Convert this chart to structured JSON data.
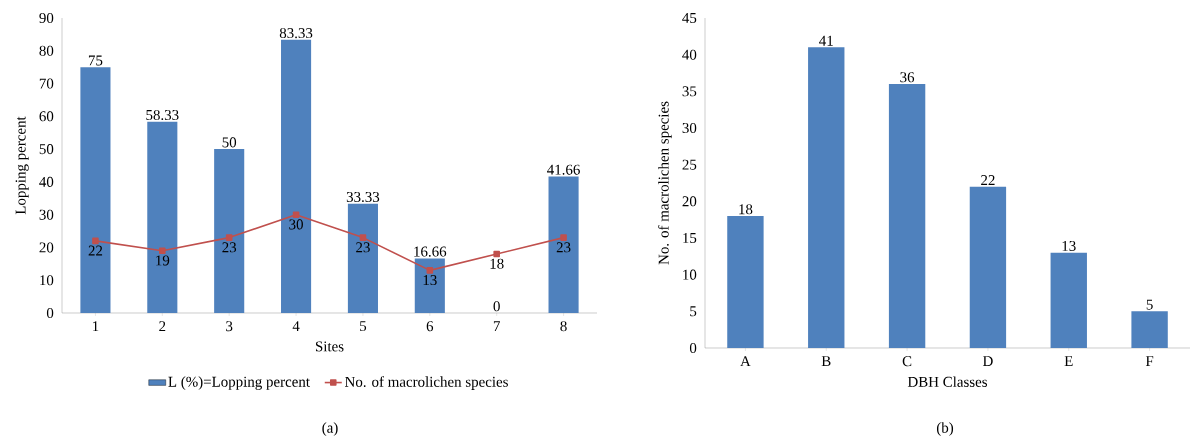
{
  "chart_data": [
    {
      "type": "bar",
      "xlabel": "Sites",
      "ylabel": "Lopping percent",
      "categories": [
        "1",
        "2",
        "3",
        "4",
        "5",
        "6",
        "7",
        "8"
      ],
      "series": [
        {
          "name": "L (%)=Lopping percent",
          "color": "#4f81bd",
          "values": [
            75,
            58.33,
            50,
            83.33,
            33.33,
            16.66,
            0,
            41.66
          ]
        },
        {
          "name": "No. of macrolichen species",
          "type": "line",
          "marker": "square",
          "color": "#c0504d",
          "values": [
            22,
            19,
            23,
            30,
            23,
            13,
            18,
            23
          ]
        }
      ],
      "ylim": [
        0,
        90
      ],
      "yticks": [
        0,
        10,
        20,
        30,
        40,
        50,
        60,
        70,
        80,
        90
      ],
      "data_labels": true,
      "legend": "bottom",
      "annotations": [
        "(a)"
      ]
    },
    {
      "type": "bar",
      "xlabel": "DBH Classes",
      "ylabel": "No. of  macrolichen species",
      "categories": [
        "A",
        "B",
        "C",
        "D",
        "E",
        "F"
      ],
      "values": [
        18,
        41,
        36,
        22,
        13,
        5
      ],
      "color": "#4f81bd",
      "ylim": [
        0,
        45
      ],
      "yticks": [
        0,
        5,
        10,
        15,
        20,
        25,
        30,
        35,
        40,
        45
      ],
      "data_labels": true,
      "annotations": [
        "(b)"
      ]
    }
  ]
}
